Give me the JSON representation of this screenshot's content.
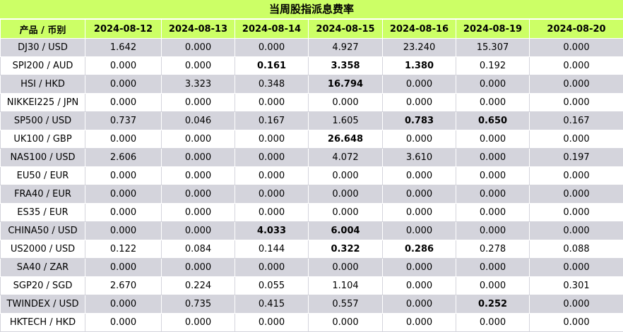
{
  "title": "当周股指派息费率",
  "headers": [
    "产品 / 币别",
    "2024-08-12",
    "2024-08-13",
    "2024-08-14",
    "2024-08-15",
    "2024-08-16",
    "2024-08-19",
    "2024-08-20"
  ],
  "rows": [
    {
      "product": "DJ30 / USD",
      "values": [
        "1.642",
        "0.000",
        "0.000",
        "4.927",
        "23.240",
        "15.307",
        "0.000"
      ],
      "bold": [
        false,
        false,
        false,
        false,
        false,
        false,
        false
      ]
    },
    {
      "product": "SPI200 / AUD",
      "values": [
        "0.000",
        "0.000",
        "0.161",
        "3.358",
        "1.380",
        "0.192",
        "0.000"
      ],
      "bold": [
        false,
        false,
        true,
        true,
        true,
        false,
        false
      ]
    },
    {
      "product": "HSI / HKD",
      "values": [
        "0.000",
        "3.323",
        "0.348",
        "16.794",
        "0.000",
        "0.000",
        "0.000"
      ],
      "bold": [
        false,
        false,
        false,
        true,
        false,
        false,
        false
      ]
    },
    {
      "product": "NIKKEI225 / JPN",
      "values": [
        "0.000",
        "0.000",
        "0.000",
        "0.000",
        "0.000",
        "0.000",
        "0.000"
      ],
      "bold": [
        false,
        false,
        false,
        false,
        false,
        false,
        false
      ]
    },
    {
      "product": "SP500 / USD",
      "values": [
        "0.737",
        "0.046",
        "0.167",
        "1.605",
        "0.783",
        "0.650",
        "0.167"
      ],
      "bold": [
        false,
        false,
        false,
        false,
        true,
        true,
        false
      ]
    },
    {
      "product": "UK100 / GBP",
      "values": [
        "0.000",
        "0.000",
        "0.000",
        "26.648",
        "0.000",
        "0.000",
        "0.000"
      ],
      "bold": [
        false,
        false,
        false,
        true,
        false,
        false,
        false
      ]
    },
    {
      "product": "NAS100 / USD",
      "values": [
        "2.606",
        "0.000",
        "0.000",
        "4.072",
        "3.610",
        "0.000",
        "0.197"
      ],
      "bold": [
        false,
        false,
        false,
        false,
        false,
        false,
        false
      ]
    },
    {
      "product": "EU50 / EUR",
      "values": [
        "0.000",
        "0.000",
        "0.000",
        "0.000",
        "0.000",
        "0.000",
        "0.000"
      ],
      "bold": [
        false,
        false,
        false,
        false,
        false,
        false,
        false
      ]
    },
    {
      "product": "FRA40 / EUR",
      "values": [
        "0.000",
        "0.000",
        "0.000",
        "0.000",
        "0.000",
        "0.000",
        "0.000"
      ],
      "bold": [
        false,
        false,
        false,
        false,
        false,
        false,
        false
      ]
    },
    {
      "product": "ES35 / EUR",
      "values": [
        "0.000",
        "0.000",
        "0.000",
        "0.000",
        "0.000",
        "0.000",
        "0.000"
      ],
      "bold": [
        false,
        false,
        false,
        false,
        false,
        false,
        false
      ]
    },
    {
      "product": "CHINA50 / USD",
      "values": [
        "0.000",
        "0.000",
        "4.033",
        "6.004",
        "0.000",
        "0.000",
        "0.000"
      ],
      "bold": [
        false,
        false,
        true,
        true,
        false,
        false,
        false
      ]
    },
    {
      "product": "US2000 / USD",
      "values": [
        "0.122",
        "0.084",
        "0.144",
        "0.322",
        "0.286",
        "0.278",
        "0.088"
      ],
      "bold": [
        false,
        false,
        false,
        true,
        true,
        false,
        false
      ]
    },
    {
      "product": "SA40 / ZAR",
      "values": [
        "0.000",
        "0.000",
        "0.000",
        "0.000",
        "0.000",
        "0.000",
        "0.000"
      ],
      "bold": [
        false,
        false,
        false,
        false,
        false,
        false,
        false
      ]
    },
    {
      "product": "SGP20 / SGD",
      "values": [
        "2.670",
        "0.224",
        "0.055",
        "1.104",
        "0.000",
        "0.000",
        "0.301"
      ],
      "bold": [
        false,
        false,
        false,
        false,
        false,
        false,
        false
      ]
    },
    {
      "product": "TWINDEX / USD",
      "values": [
        "0.000",
        "0.735",
        "0.415",
        "0.557",
        "0.000",
        "0.252",
        "0.000"
      ],
      "bold": [
        false,
        false,
        false,
        false,
        false,
        true,
        false
      ]
    },
    {
      "product": "HKTECH / HKD",
      "values": [
        "0.000",
        "0.000",
        "0.000",
        "0.000",
        "0.000",
        "0.000",
        "0.000"
      ],
      "bold": [
        false,
        false,
        false,
        false,
        false,
        false,
        false
      ]
    }
  ]
}
